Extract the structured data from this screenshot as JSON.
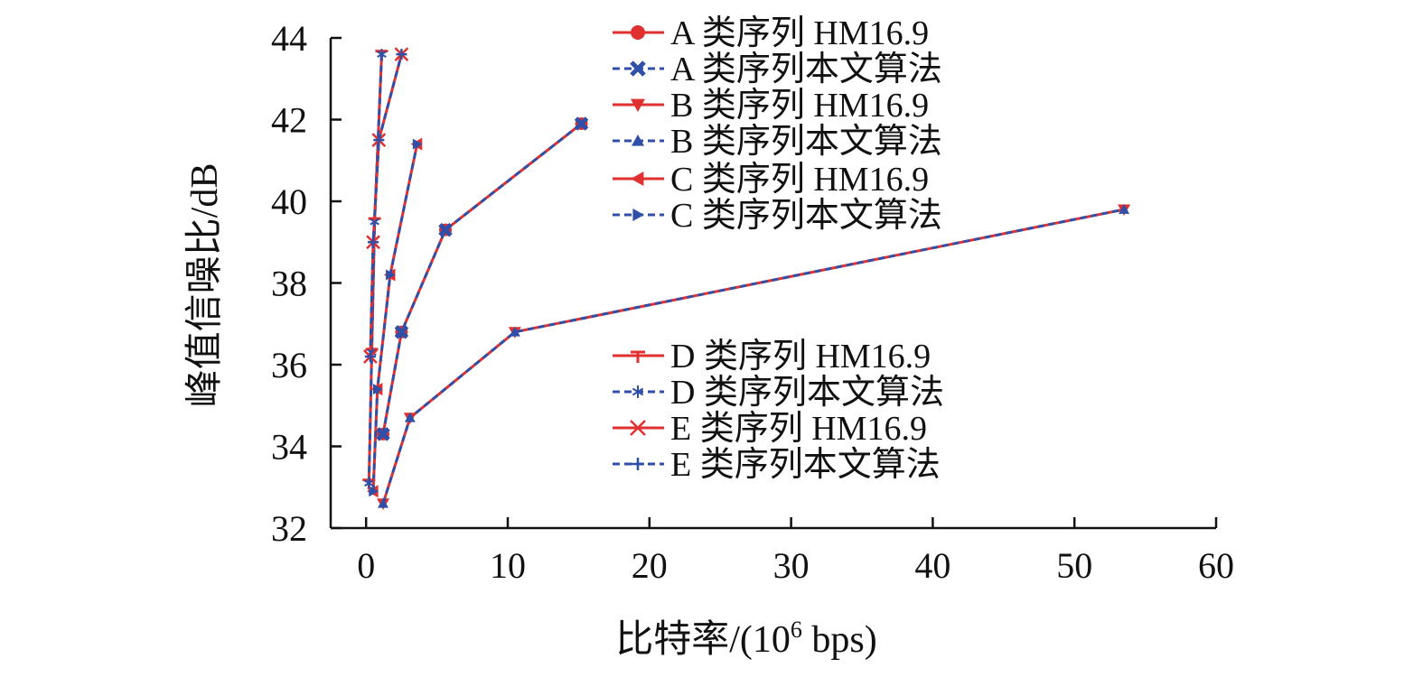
{
  "chart_data": {
    "type": "line",
    "title": "",
    "xlabel": "比特率/(10",
    "xlabel_sup": "6",
    "xlabel_suffix": " bps)",
    "ylabel": "峰值信噪比/dB",
    "xlim": [
      -2.5,
      60
    ],
    "ylim": [
      32,
      44
    ],
    "xticks": [
      0,
      10,
      20,
      30,
      40,
      50,
      60
    ],
    "yticks": [
      32,
      34,
      36,
      38,
      40,
      42,
      44
    ],
    "xtick_labels": [
      "0",
      "10",
      "20",
      "30",
      "40",
      "50",
      "60"
    ],
    "ytick_labels": [
      "32",
      "34",
      "36",
      "38",
      "40",
      "42",
      "44"
    ],
    "colors": {
      "hm": "#e03030",
      "ours": "#3050a8"
    },
    "series": [
      {
        "name": "A 类序列 HM16.9",
        "group": "A",
        "kind": "hm",
        "marker": "circle",
        "x": [
          1.2,
          2.5,
          5.6,
          15.2
        ],
        "y": [
          34.3,
          36.8,
          39.3,
          41.9
        ]
      },
      {
        "name": "A 类序列本文算法",
        "group": "A",
        "kind": "ours",
        "marker": "x",
        "x": [
          1.2,
          2.5,
          5.6,
          15.2
        ],
        "y": [
          34.3,
          36.8,
          39.3,
          41.9
        ]
      },
      {
        "name": "B 类序列 HM16.9",
        "group": "B",
        "kind": "hm",
        "marker": "tri-down",
        "x": [
          1.2,
          3.1,
          10.5,
          53.5
        ],
        "y": [
          32.6,
          34.7,
          36.8,
          39.8
        ]
      },
      {
        "name": "B 类序列本文算法",
        "group": "B",
        "kind": "ours",
        "marker": "tri-up",
        "x": [
          1.2,
          3.1,
          10.5,
          53.5
        ],
        "y": [
          32.6,
          34.7,
          36.8,
          39.8
        ]
      },
      {
        "name": "C 类序列 HM16.9",
        "group": "C",
        "kind": "hm",
        "marker": "tri-left",
        "x": [
          0.5,
          0.8,
          1.7,
          3.6
        ],
        "y": [
          32.9,
          35.4,
          38.2,
          41.4
        ]
      },
      {
        "name": "C 类序列本文算法",
        "group": "C",
        "kind": "ours",
        "marker": "tri-right",
        "x": [
          0.5,
          0.8,
          1.7,
          3.6
        ],
        "y": [
          32.9,
          35.4,
          38.2,
          41.4
        ]
      },
      {
        "name": "D 类序列 HM16.9",
        "group": "D",
        "kind": "hm",
        "marker": "tri-bar",
        "x": [
          0.2,
          0.4,
          0.6,
          1.1
        ],
        "y": [
          33.1,
          36.3,
          39.5,
          43.6
        ]
      },
      {
        "name": "D 类序列本文算法",
        "group": "D",
        "kind": "ours",
        "marker": "star",
        "x": [
          0.2,
          0.4,
          0.6,
          1.1
        ],
        "y": [
          33.1,
          36.3,
          39.5,
          43.6
        ]
      },
      {
        "name": "E 类序列 HM16.9",
        "group": "E",
        "kind": "hm",
        "marker": "cross",
        "x": [
          0.3,
          0.5,
          0.9,
          2.5
        ],
        "y": [
          36.2,
          39.0,
          41.5,
          43.6
        ]
      },
      {
        "name": "E 类序列本文算法",
        "group": "E",
        "kind": "ours",
        "marker": "plus",
        "x": [
          0.3,
          0.5,
          0.9,
          2.5
        ],
        "y": [
          36.2,
          39.0,
          41.5,
          43.6
        ]
      }
    ],
    "legend": [
      {
        "label": "A 类序列 HM16.9"
      },
      {
        "label": "A 类序列本文算法"
      },
      {
        "label": "B 类序列 HM16.9"
      },
      {
        "label": "B 类序列本文算法"
      },
      {
        "label": "C 类序列 HM16.9"
      },
      {
        "label": "C 类序列本文算法"
      },
      {
        "label": "D 类序列 HM16.9"
      },
      {
        "label": "D 类序列本文算法"
      },
      {
        "label": "E 类序列 HM16.9"
      },
      {
        "label": "E 类序列本文算法"
      }
    ]
  }
}
